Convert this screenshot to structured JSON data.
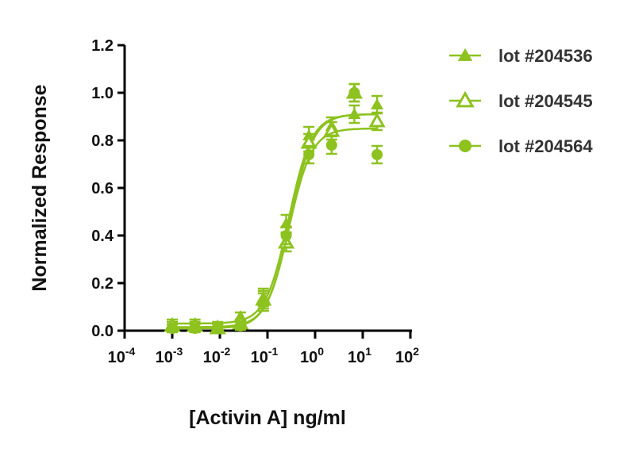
{
  "chart_data": {
    "type": "scatter",
    "title": "",
    "xlabel": "[Activin A] ng/ml",
    "ylabel": "Normalized Response",
    "xscale": "log",
    "xlim": [
      0.0001,
      100
    ],
    "ylim": [
      0,
      1.2
    ],
    "xticks": [
      {
        "base": "10",
        "exp": "-4"
      },
      {
        "base": "10",
        "exp": "-3"
      },
      {
        "base": "10",
        "exp": "-2"
      },
      {
        "base": "10",
        "exp": "-1"
      },
      {
        "base": "10",
        "exp": "0"
      },
      {
        "base": "10",
        "exp": "1"
      },
      {
        "base": "10",
        "exp": "2"
      }
    ],
    "yticks": [
      "0.0",
      "0.2",
      "0.4",
      "0.6",
      "0.8",
      "1.0",
      "1.2"
    ],
    "color": "#8dc21f",
    "legend_position": "right",
    "x": [
      0.001,
      0.003,
      0.009,
      0.027,
      0.082,
      0.247,
      0.74,
      2.22,
      6.67,
      20
    ],
    "series": [
      {
        "name": "lot #204536",
        "marker": "filled-triangle",
        "values": [
          0.03,
          0.03,
          0.02,
          0.06,
          0.14,
          0.45,
          0.82,
          0.86,
          0.91,
          0.95
        ],
        "fit": {
          "bottom": 0.03,
          "top": 0.91,
          "ec50": 0.28,
          "hill": 1.8
        }
      },
      {
        "name": "lot #204545",
        "marker": "open-triangle",
        "values": [
          0.02,
          0.02,
          0.01,
          0.03,
          0.13,
          0.37,
          0.79,
          0.84,
          1.0,
          0.88
        ],
        "fit": {
          "bottom": 0.015,
          "top": 0.91,
          "ec50": 0.3,
          "hill": 1.8
        }
      },
      {
        "name": "lot #204564",
        "marker": "circle",
        "values": [
          0.01,
          0.01,
          0.01,
          0.02,
          0.12,
          0.4,
          0.74,
          0.78,
          1.0,
          0.74
        ],
        "fit": {
          "bottom": 0.01,
          "top": 0.85,
          "ec50": 0.28,
          "hill": 1.8
        }
      }
    ]
  }
}
